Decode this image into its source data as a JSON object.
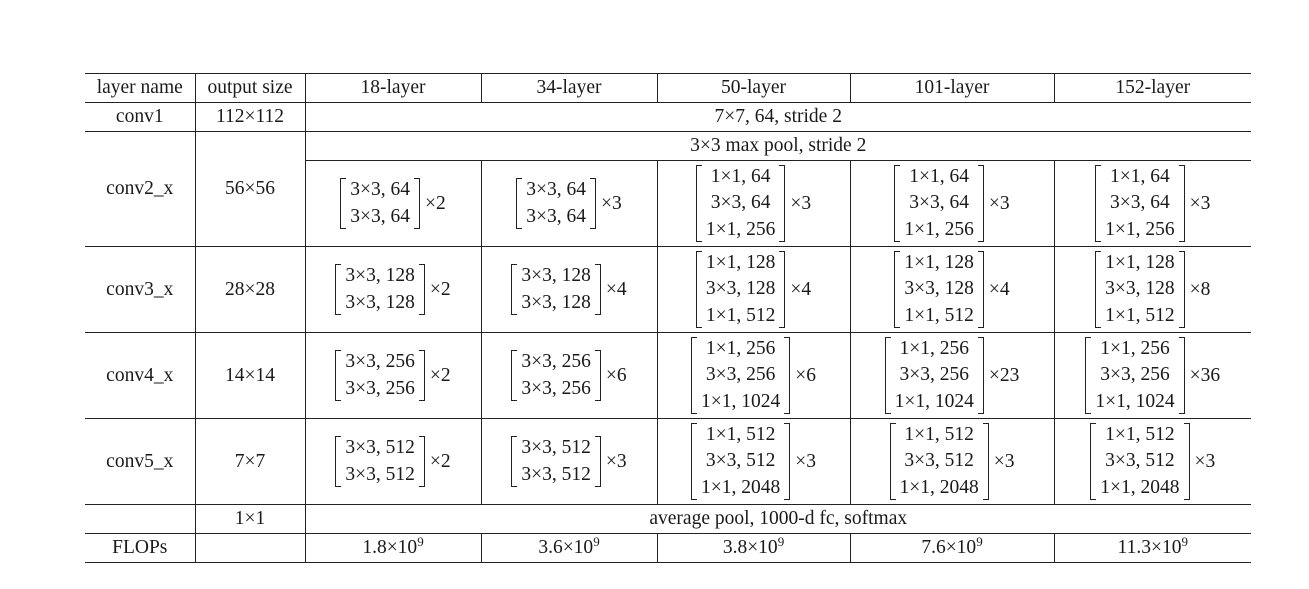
{
  "header": {
    "layer_name": "layer name",
    "output_size": "output size",
    "models": [
      "18-layer",
      "34-layer",
      "50-layer",
      "101-layer",
      "152-layer"
    ]
  },
  "conv1": {
    "name": "conv1",
    "output": "112×112",
    "spec": "7×7, 64, stride 2"
  },
  "maxpool": {
    "spec": "3×3 max pool, stride 2"
  },
  "stages": [
    {
      "name": "conv2_x",
      "output": "56×56",
      "blocks": [
        {
          "lines": [
            "3×3, 64",
            "3×3, 64"
          ],
          "mult": "×2"
        },
        {
          "lines": [
            "3×3, 64",
            "3×3, 64"
          ],
          "mult": "×3"
        },
        {
          "lines": [
            "1×1, 64",
            "3×3, 64",
            "1×1, 256"
          ],
          "mult": "×3"
        },
        {
          "lines": [
            "1×1, 64",
            "3×3, 64",
            "1×1, 256"
          ],
          "mult": "×3"
        },
        {
          "lines": [
            "1×1, 64",
            "3×3, 64",
            "1×1, 256"
          ],
          "mult": "×3"
        }
      ]
    },
    {
      "name": "conv3_x",
      "output": "28×28",
      "blocks": [
        {
          "lines": [
            "3×3, 128",
            "3×3, 128"
          ],
          "mult": "×2"
        },
        {
          "lines": [
            "3×3, 128",
            "3×3, 128"
          ],
          "mult": "×4"
        },
        {
          "lines": [
            "1×1, 128",
            "3×3, 128",
            "1×1, 512"
          ],
          "mult": "×4"
        },
        {
          "lines": [
            "1×1, 128",
            "3×3, 128",
            "1×1, 512"
          ],
          "mult": "×4"
        },
        {
          "lines": [
            "1×1, 128",
            "3×3, 128",
            "1×1, 512"
          ],
          "mult": "×8"
        }
      ]
    },
    {
      "name": "conv4_x",
      "output": "14×14",
      "blocks": [
        {
          "lines": [
            "3×3, 256",
            "3×3, 256"
          ],
          "mult": "×2"
        },
        {
          "lines": [
            "3×3, 256",
            "3×3, 256"
          ],
          "mult": "×6"
        },
        {
          "lines": [
            "1×1, 256",
            "3×3, 256",
            "1×1, 1024"
          ],
          "mult": "×6"
        },
        {
          "lines": [
            "1×1, 256",
            "3×3, 256",
            "1×1, 1024"
          ],
          "mult": "×23"
        },
        {
          "lines": [
            "1×1, 256",
            "3×3, 256",
            "1×1, 1024"
          ],
          "mult": "×36"
        }
      ]
    },
    {
      "name": "conv5_x",
      "output": "7×7",
      "blocks": [
        {
          "lines": [
            "3×3, 512",
            "3×3, 512"
          ],
          "mult": "×2"
        },
        {
          "lines": [
            "3×3, 512",
            "3×3, 512"
          ],
          "mult": "×3"
        },
        {
          "lines": [
            "1×1, 512",
            "3×3, 512",
            "1×1, 2048"
          ],
          "mult": "×3"
        },
        {
          "lines": [
            "1×1, 512",
            "3×3, 512",
            "1×1, 2048"
          ],
          "mult": "×3"
        },
        {
          "lines": [
            "1×1, 512",
            "3×3, 512",
            "1×1, 2048"
          ],
          "mult": "×3"
        }
      ]
    }
  ],
  "final": {
    "output": "1×1",
    "spec": "average pool, 1000-d fc, softmax"
  },
  "flops": {
    "label": "FLOPs",
    "values": [
      {
        "mantissa": "1.8",
        "base": "×10",
        "exp": "9"
      },
      {
        "mantissa": "3.6",
        "base": "×10",
        "exp": "9"
      },
      {
        "mantissa": "3.8",
        "base": "×10",
        "exp": "9"
      },
      {
        "mantissa": "7.6",
        "base": "×10",
        "exp": "9"
      },
      {
        "mantissa": "11.3",
        "base": "×10",
        "exp": "9"
      }
    ]
  }
}
